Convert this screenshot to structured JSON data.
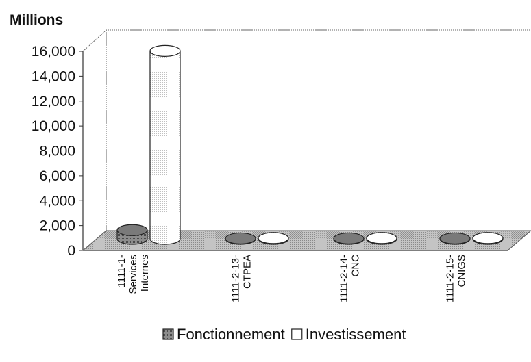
{
  "chart_data": {
    "type": "bar",
    "style": "3d-cylinder",
    "ylabel": "Millions",
    "ylim": [
      0,
      16000
    ],
    "yticks": [
      0,
      2000,
      4000,
      6000,
      8000,
      10000,
      12000,
      14000,
      16000
    ],
    "ytick_labels": [
      "0",
      "2,000",
      "4,000",
      "6,000",
      "8,000",
      "10,000",
      "12,000",
      "14,000",
      "16,000"
    ],
    "categories": [
      [
        "1111-1-",
        "Services",
        "Internes"
      ],
      [
        "1111-2-13-",
        "CTPEA"
      ],
      [
        "1111-2-14-",
        "CNC"
      ],
      [
        "1111-2-15-",
        "CNIGS"
      ]
    ],
    "series": [
      {
        "name": "Fonctionnement",
        "values": [
          700,
          30,
          30,
          30
        ],
        "color": "#6e6e6e"
      },
      {
        "name": "Investissement",
        "values": [
          15100,
          60,
          60,
          60
        ],
        "color": "#ffffff"
      }
    ],
    "legend_position": "bottom",
    "grid": false
  }
}
